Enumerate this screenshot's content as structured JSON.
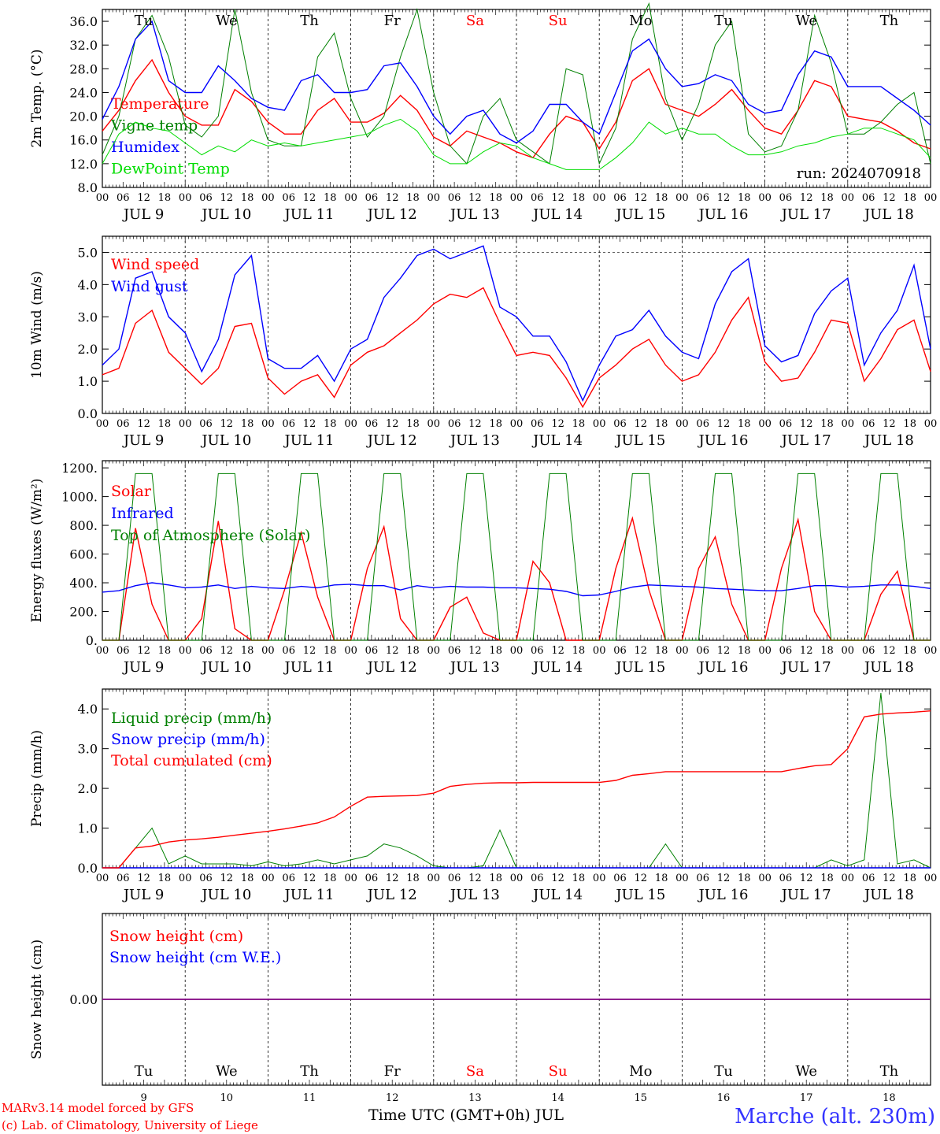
{
  "run_label": "run: 2024070918",
  "footer": {
    "model_line1": "MARv3.14 model forced by GFS",
    "model_line2": "(c) Lab. of Climatology, University of Liege",
    "time_axis_label": "Time UTC (GMT+0h) JUL",
    "station": "Marche (alt. 230m)"
  },
  "days": [
    {
      "dow": "Tu",
      "date": "JUL  9",
      "num": "9",
      "weekend": false
    },
    {
      "dow": "We",
      "date": "JUL 10",
      "num": "10",
      "weekend": false
    },
    {
      "dow": "Th",
      "date": "JUL 11",
      "num": "11",
      "weekend": false
    },
    {
      "dow": "Fr",
      "date": "JUL 12",
      "num": "12",
      "weekend": false
    },
    {
      "dow": "Sa",
      "date": "JUL 13",
      "num": "13",
      "weekend": true
    },
    {
      "dow": "Su",
      "date": "JUL 14",
      "num": "14",
      "weekend": true
    },
    {
      "dow": "Mo",
      "date": "JUL 15",
      "num": "15",
      "weekend": false
    },
    {
      "dow": "Tu",
      "date": "JUL 16",
      "num": "16",
      "weekend": false
    },
    {
      "dow": "We",
      "date": "JUL 17",
      "num": "17",
      "weekend": false
    },
    {
      "dow": "Th",
      "date": "JUL 18",
      "num": "18",
      "weekend": false
    }
  ],
  "hour_ticks": [
    "00",
    "06",
    "12",
    "18"
  ],
  "hour_end": "00",
  "colors": {
    "red": "#ff0000",
    "green": "#008000",
    "blue": "#0000ff",
    "light_green": "#00dd00",
    "purple": "#800080",
    "grid": "#000000"
  },
  "chart_data": [
    {
      "type": "line",
      "ylabel": "2m Temp. (°C)",
      "ylim": [
        8,
        38
      ],
      "yticks": [
        "8.0",
        "12.0",
        "16.0",
        "20.0",
        "24.0",
        "28.0",
        "32.0",
        "36.0"
      ],
      "ytick_values": [
        8,
        12,
        16,
        20,
        24,
        28,
        32,
        36
      ],
      "show_dow_top": true,
      "x_hours_step": 6,
      "series": [
        {
          "name": "Temperature",
          "color": "#ff0000",
          "values": [
            17.5,
            21,
            26,
            29.5,
            24,
            20,
            18.5,
            18.5,
            24.5,
            22.5,
            19,
            17,
            17,
            21,
            23,
            19,
            19,
            20.5,
            23.5,
            21,
            16.5,
            15,
            17.5,
            16.5,
            15.5,
            14,
            13,
            17,
            20,
            19,
            14.5,
            19,
            26,
            28,
            22,
            21,
            20,
            22,
            24.5,
            21,
            18,
            17,
            21,
            26,
            25,
            20,
            19.5,
            19,
            17.5,
            15.5,
            14.5
          ]
        },
        {
          "name": "Vigne temp",
          "color": "#008000",
          "values": [
            13.5,
            20,
            33,
            37,
            30,
            18.5,
            16.5,
            20,
            38,
            24,
            16,
            15,
            15,
            30,
            34,
            23,
            16.5,
            20,
            30,
            38,
            24,
            15,
            12,
            20,
            23,
            16,
            14,
            12,
            28,
            27,
            12,
            18,
            33,
            39,
            23,
            16,
            22,
            32,
            36,
            17,
            14,
            15,
            21,
            37,
            29,
            17,
            17,
            19,
            22,
            24,
            12
          ]
        },
        {
          "name": "Humidex",
          "color": "#0000ff",
          "values": [
            19.5,
            25,
            33,
            36,
            26,
            24,
            24,
            28.5,
            26,
            23,
            21.5,
            21,
            26,
            27,
            24,
            24,
            24.5,
            28.5,
            29,
            25,
            20,
            17,
            20,
            21,
            17,
            15.5,
            17.5,
            22,
            22,
            19,
            17,
            24,
            31,
            33,
            28,
            25,
            25.5,
            27,
            26,
            22,
            20.5,
            21,
            27,
            31,
            30,
            25,
            25,
            25,
            23,
            21,
            18.5
          ]
        },
        {
          "name": "DewPoint Temp",
          "color": "#00dd00",
          "values": [
            12,
            17,
            19,
            18,
            17.5,
            15.5,
            13.5,
            15,
            14,
            16,
            15,
            15.5,
            15,
            15.5,
            16,
            16.5,
            17,
            18.5,
            19.5,
            17.5,
            13.5,
            12,
            12,
            14,
            15.5,
            15,
            13,
            12,
            11,
            11,
            11,
            13,
            15.5,
            19,
            17,
            18,
            17,
            17,
            15,
            13.5,
            13.5,
            14,
            15,
            15.5,
            16.5,
            17,
            18,
            18,
            17,
            16,
            13
          ]
        }
      ]
    },
    {
      "type": "line",
      "ylabel": "10m Wind (m/s)",
      "ylim": [
        0,
        5.5
      ],
      "yticks": [
        "0.0",
        "1.0",
        "2.0",
        "3.0",
        "4.0",
        "5.0"
      ],
      "ytick_values": [
        0,
        1,
        2,
        3,
        4,
        5
      ],
      "dashed_hline": 5,
      "x_hours_step": 6,
      "series": [
        {
          "name": "Wind speed",
          "color": "#ff0000",
          "values": [
            1.2,
            1.4,
            2.8,
            3.2,
            1.9,
            1.4,
            0.9,
            1.4,
            2.7,
            2.8,
            1.1,
            0.6,
            1.0,
            1.2,
            0.5,
            1.5,
            1.9,
            2.1,
            2.5,
            2.9,
            3.4,
            3.7,
            3.6,
            3.9,
            2.8,
            1.8,
            1.9,
            1.8,
            1.1,
            0.2,
            1.1,
            1.5,
            2.0,
            2.3,
            1.5,
            1.0,
            1.2,
            1.9,
            2.9,
            3.6,
            1.6,
            1.0,
            1.1,
            1.9,
            2.9,
            2.8,
            1.0,
            1.7,
            2.6,
            2.9,
            1.3
          ]
        },
        {
          "name": "Wind gust",
          "color": "#0000ff",
          "values": [
            1.5,
            2.0,
            4.2,
            4.4,
            3.0,
            2.5,
            1.3,
            2.3,
            4.3,
            4.9,
            1.7,
            1.4,
            1.4,
            1.8,
            1.0,
            2.0,
            2.3,
            3.6,
            4.2,
            4.9,
            5.1,
            4.8,
            5.0,
            5.2,
            3.3,
            3.0,
            2.4,
            2.4,
            1.6,
            0.4,
            1.5,
            2.4,
            2.6,
            3.2,
            2.4,
            1.9,
            1.7,
            3.4,
            4.4,
            4.8,
            2.1,
            1.6,
            1.8,
            3.1,
            3.8,
            4.2,
            1.5,
            2.5,
            3.2,
            4.6,
            2.0
          ]
        }
      ]
    },
    {
      "type": "line",
      "ylabel": "Energy fluxes (W/m²)",
      "ylim": [
        0,
        1250
      ],
      "yticks": [
        "0.",
        "200.",
        "400.",
        "600.",
        "800.",
        "1000.",
        "1200."
      ],
      "ytick_values": [
        0,
        200,
        400,
        600,
        800,
        1000,
        1200
      ],
      "x_hours_step": 6,
      "series": [
        {
          "name": "Solar",
          "color": "#ff0000",
          "values": [
            0,
            0,
            780,
            250,
            0,
            0,
            150,
            830,
            80,
            0,
            0,
            350,
            750,
            300,
            0,
            0,
            500,
            790,
            150,
            0,
            0,
            230,
            300,
            50,
            0,
            0,
            550,
            400,
            0,
            0,
            0,
            500,
            850,
            350,
            0,
            0,
            500,
            720,
            250,
            0,
            0,
            500,
            840,
            200,
            0,
            0,
            0,
            320,
            480,
            0,
            0
          ]
        },
        {
          "name": "Infrared",
          "color": "#0000ff",
          "values": [
            335,
            345,
            380,
            400,
            385,
            365,
            370,
            385,
            360,
            375,
            365,
            360,
            375,
            365,
            385,
            390,
            380,
            380,
            350,
            380,
            365,
            375,
            370,
            370,
            365,
            365,
            360,
            355,
            340,
            310,
            315,
            340,
            370,
            385,
            380,
            375,
            370,
            360,
            355,
            350,
            345,
            345,
            360,
            380,
            380,
            370,
            375,
            385,
            385,
            375,
            360
          ]
        },
        {
          "name": "Top of Atmosphere (Solar)",
          "color": "#008000",
          "values": [
            0,
            0,
            1160,
            1160,
            0,
            0,
            0,
            1160,
            1160,
            0,
            0,
            0,
            1160,
            1160,
            0,
            0,
            0,
            1160,
            1160,
            0,
            0,
            0,
            1160,
            1160,
            0,
            0,
            0,
            1160,
            1160,
            0,
            0,
            0,
            1160,
            1160,
            0,
            0,
            0,
            1160,
            1160,
            0,
            0,
            0,
            1160,
            1160,
            0,
            0,
            0,
            1160,
            1160,
            0,
            0
          ]
        }
      ]
    },
    {
      "type": "line",
      "ylabel": "Precip (mm/h)",
      "ylim": [
        0,
        4.5
      ],
      "yticks": [
        "0.0",
        "1.0",
        "2.0",
        "3.0",
        "4.0"
      ],
      "ytick_values": [
        0,
        1,
        2,
        3,
        4
      ],
      "x_hours_step": 6,
      "series": [
        {
          "name": "Liquid precip (mm/h)",
          "color": "#008000",
          "values": [
            0,
            0,
            0.5,
            1.0,
            0.1,
            0.3,
            0.1,
            0.1,
            0.1,
            0.05,
            0.15,
            0.05,
            0.1,
            0.2,
            0.1,
            0.2,
            0.3,
            0.6,
            0.5,
            0.3,
            0.05,
            0,
            0,
            0.05,
            0.95,
            0,
            0,
            0,
            0,
            0,
            0,
            0,
            0,
            0,
            0.6,
            0,
            0,
            0,
            0,
            0,
            0,
            0,
            0,
            0,
            0.2,
            0.05,
            0.2,
            4.4,
            0.1,
            0.2,
            0
          ]
        },
        {
          "name": "Snow precip (mm/h)",
          "color": "#0000ff",
          "values": [
            0,
            0,
            0,
            0,
            0,
            0,
            0,
            0,
            0,
            0,
            0,
            0,
            0,
            0,
            0,
            0,
            0,
            0,
            0,
            0,
            0,
            0,
            0,
            0,
            0,
            0,
            0,
            0,
            0,
            0,
            0,
            0,
            0,
            0,
            0,
            0,
            0,
            0,
            0,
            0,
            0,
            0,
            0,
            0,
            0,
            0,
            0,
            0,
            0,
            0,
            0
          ]
        },
        {
          "name": "Total cumulated (cm)",
          "color": "#ff0000",
          "values": [
            0,
            0,
            0.5,
            0.55,
            0.65,
            0.7,
            0.73,
            0.77,
            0.82,
            0.87,
            0.92,
            0.98,
            1.05,
            1.13,
            1.28,
            1.55,
            1.78,
            1.8,
            1.81,
            1.82,
            1.88,
            2.05,
            2.1,
            2.13,
            2.14,
            2.14,
            2.15,
            2.15,
            2.15,
            2.15,
            2.15,
            2.2,
            2.33,
            2.37,
            2.42,
            2.42,
            2.42,
            2.42,
            2.42,
            2.42,
            2.42,
            2.42,
            2.5,
            2.57,
            2.6,
            3.0,
            3.8,
            3.87,
            3.9,
            3.92,
            3.95
          ]
        }
      ]
    },
    {
      "type": "line",
      "ylabel": "Snow height (cm)",
      "ylim": [
        -1,
        1
      ],
      "yticks": [
        "0.00"
      ],
      "ytick_values": [
        0
      ],
      "x_hours_step": 6,
      "series": [
        {
          "name": "Snow height (cm)",
          "color": "#ff0000",
          "values": [
            0,
            0
          ]
        },
        {
          "name": "Snow height (cm W.E.)",
          "color": "#0000ff",
          "values": [
            0,
            0
          ]
        }
      ]
    }
  ]
}
